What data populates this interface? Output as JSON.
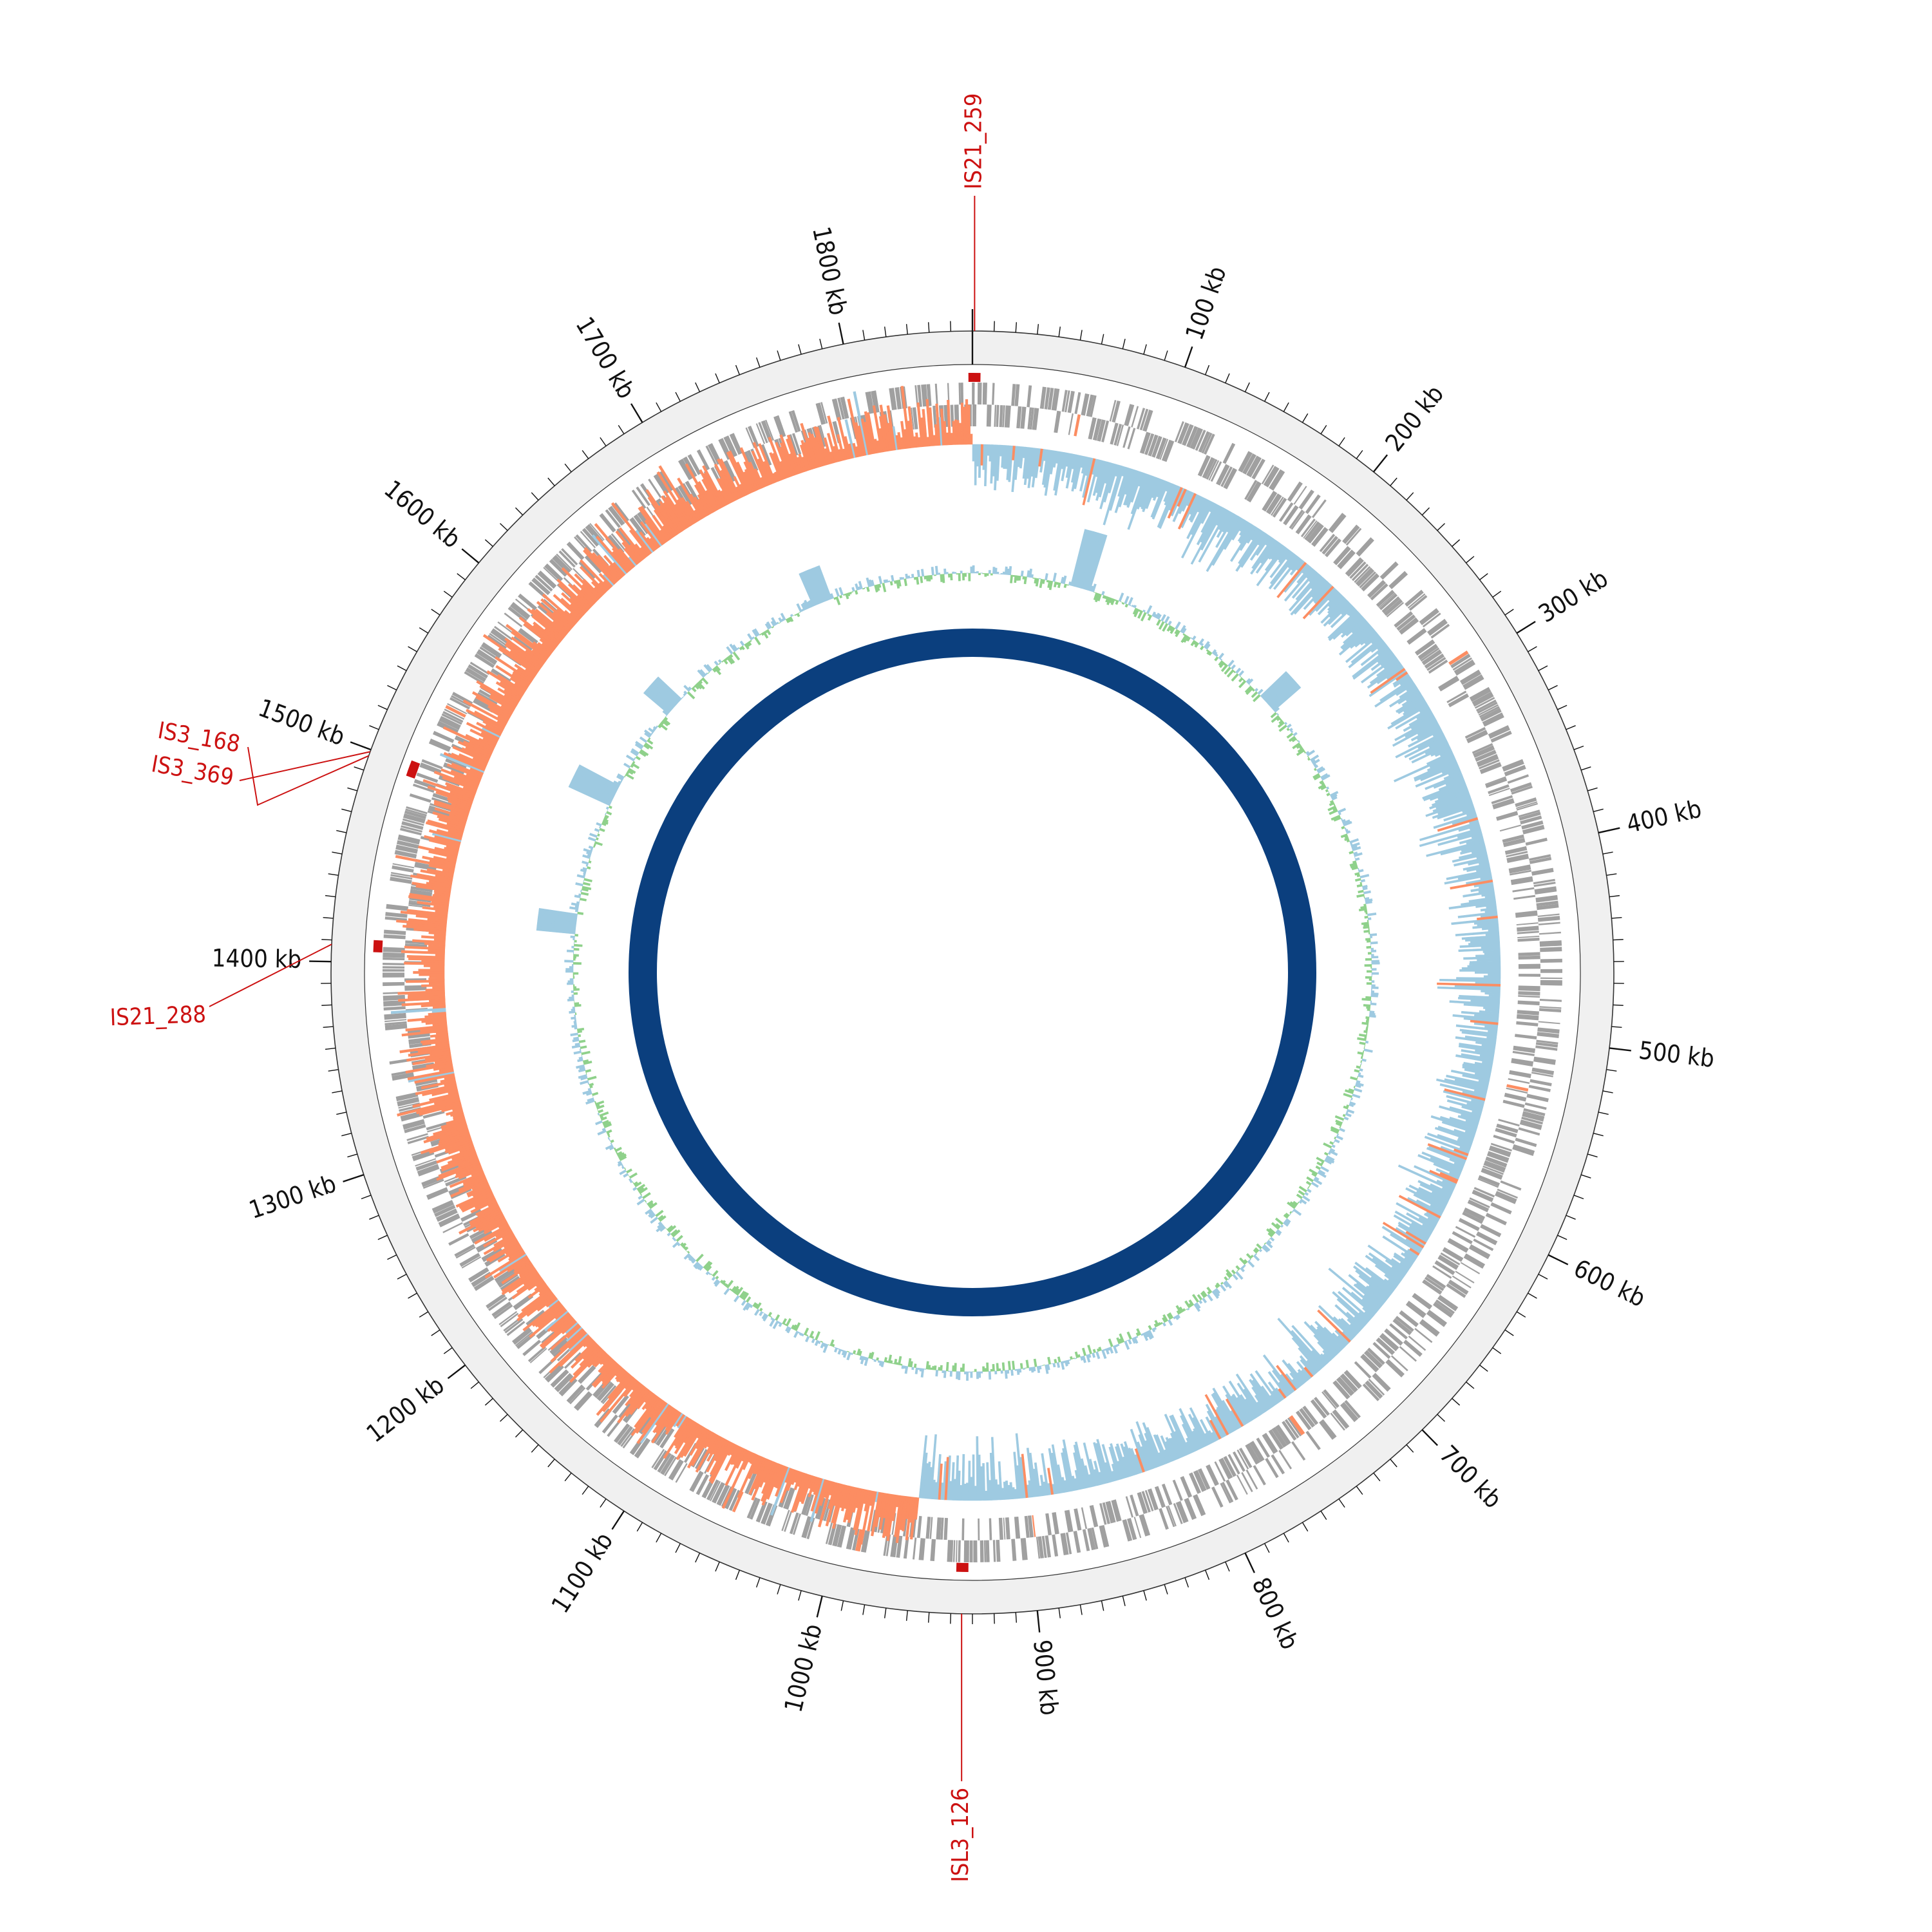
{
  "genome": {
    "length_kb": 1860,
    "position_unit": "kb",
    "tick_labels": [
      {
        "kb": 100,
        "label": "100 kb"
      },
      {
        "kb": 200,
        "label": "200 kb"
      },
      {
        "kb": 300,
        "label": "300 kb"
      },
      {
        "kb": 400,
        "label": "400 kb"
      },
      {
        "kb": 500,
        "label": "500 kb"
      },
      {
        "kb": 600,
        "label": "600 kb"
      },
      {
        "kb": 700,
        "label": "700 kb"
      },
      {
        "kb": 800,
        "label": "800 kb"
      },
      {
        "kb": 900,
        "label": "900 kb"
      },
      {
        "kb": 1000,
        "label": "1000 kb"
      },
      {
        "kb": 1100,
        "label": "1100 kb"
      },
      {
        "kb": 1200,
        "label": "1200 kb"
      },
      {
        "kb": 1300,
        "label": "1300 kb"
      },
      {
        "kb": 1400,
        "label": "1400 kb"
      },
      {
        "kb": 1500,
        "label": "1500 kb"
      },
      {
        "kb": 1600,
        "label": "1600 kb"
      },
      {
        "kb": 1700,
        "label": "1700 kb"
      },
      {
        "kb": 1800,
        "label": "1800 kb"
      }
    ]
  },
  "insertion_sequences": [
    {
      "name": "IS21_259",
      "kb": 1
    },
    {
      "name": "ISL3_126",
      "kb": 935
    },
    {
      "name": "IS21_288",
      "kb": 1408
    },
    {
      "name": "IS3_168",
      "kb": 1497
    },
    {
      "name": "IS3_369",
      "kb": 1499
    }
  ],
  "tracks": [
    {
      "name": "position ruler",
      "color": "#f0f0f0"
    },
    {
      "name": "IS elements",
      "color": "#cc1111"
    },
    {
      "name": "genes",
      "color": "#a0a0a0"
    },
    {
      "name": "GC skew",
      "positive_color": "#9ecae1",
      "negative_color": "#fc8d62"
    },
    {
      "name": "GC content",
      "positive_color": "#9ecae1",
      "negative_color": "#8fd18b"
    },
    {
      "name": "coverage",
      "color": "#0b3f7e"
    }
  ],
  "colors": {
    "is_label": "#cc1111",
    "tick": "#111111",
    "ring_outline": "#333333"
  }
}
